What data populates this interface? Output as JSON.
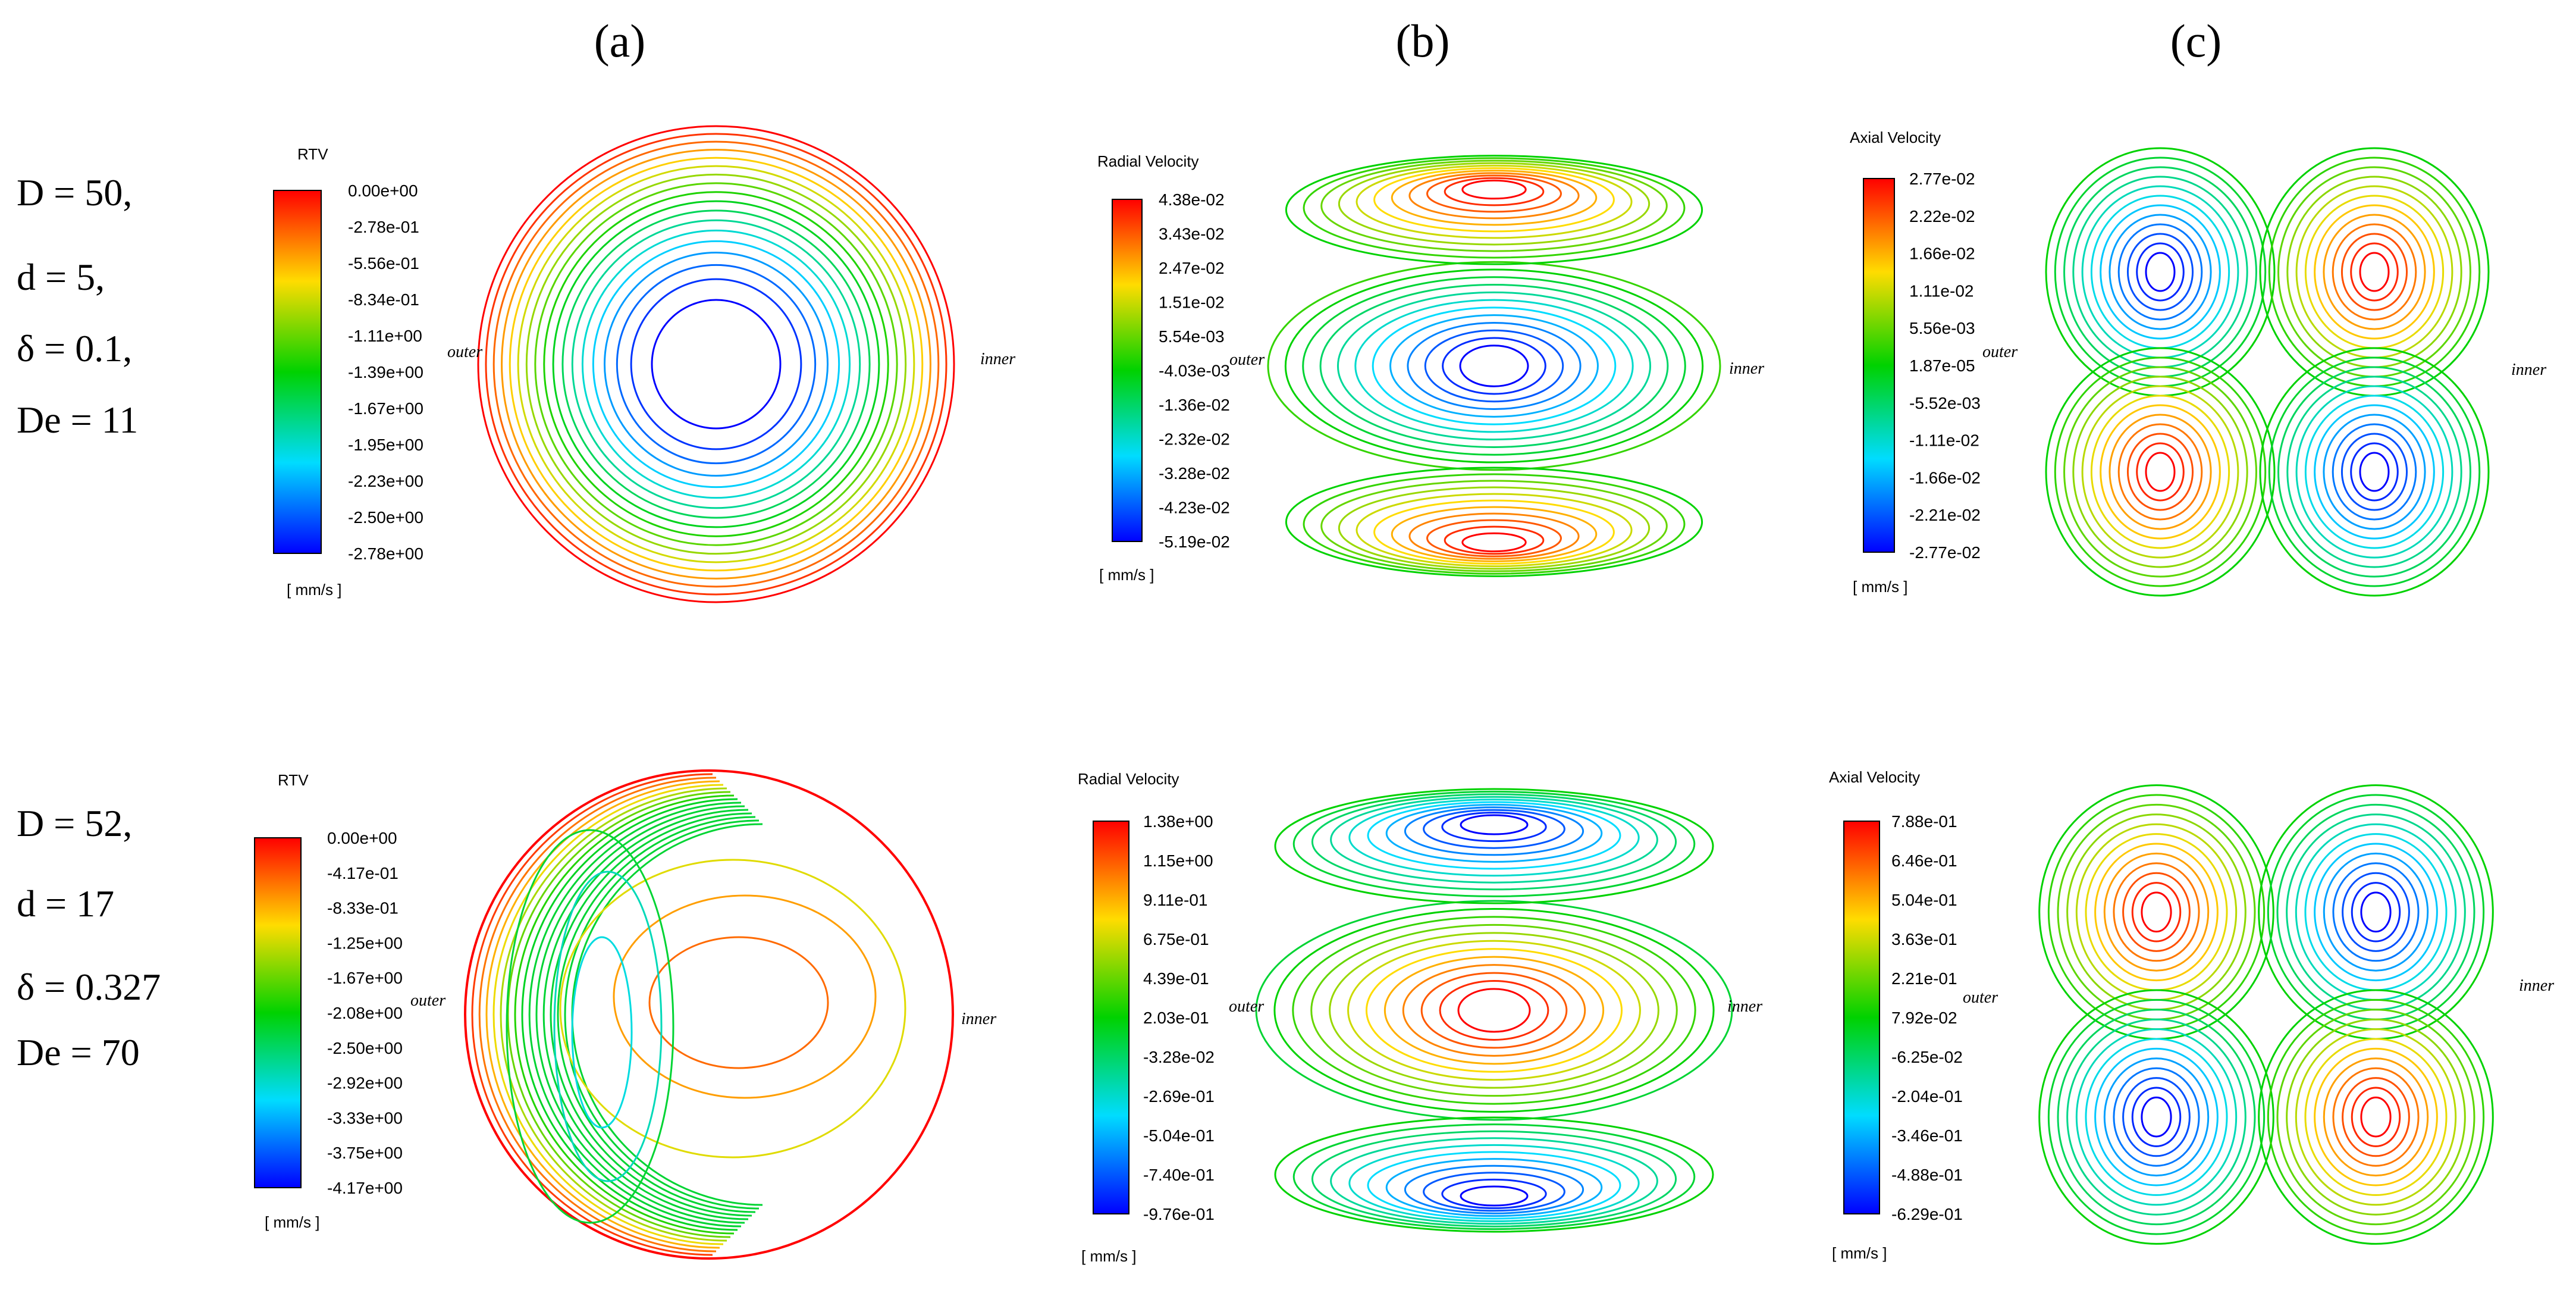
{
  "figure": {
    "column_labels": [
      "(a)",
      "(b)",
      "(c)"
    ],
    "rows": [
      {
        "params": [
          "D = 50,",
          "d = 5,",
          "δ = 0.1,",
          "De = 11"
        ],
        "panels": [
          {
            "kind": "rtv",
            "legend_title": "RTV",
            "unit": "[ mm/s ]",
            "ticks": [
              "0.00e+00",
              "-2.78e-01",
              "-5.56e-01",
              "-8.34e-01",
              "-1.11e+00",
              "-1.39e+00",
              "-1.67e+00",
              "-1.95e+00",
              "-2.23e+00",
              "-2.50e+00",
              "-2.78e+00"
            ],
            "outer_label": "outer",
            "inner_label": "inner"
          },
          {
            "kind": "radial",
            "legend_title": "Radial Velocity",
            "unit": "[ mm/s ]",
            "ticks": [
              "4.38e-02",
              "3.43e-02",
              "2.47e-02",
              "1.51e-02",
              "5.54e-03",
              "-4.03e-03",
              "-1.36e-02",
              "-2.32e-02",
              "-3.28e-02",
              "-4.23e-02",
              "-5.19e-02"
            ],
            "outer_label": "outer",
            "inner_label": "inner",
            "center_color": "blue"
          },
          {
            "kind": "axial",
            "legend_title": "Axial Velocity",
            "unit": "[ mm/s ]",
            "ticks": [
              "2.77e-02",
              "2.22e-02",
              "1.66e-02",
              "1.11e-02",
              "5.56e-03",
              "1.87e-05",
              "-5.52e-03",
              "-1.11e-02",
              "-1.66e-02",
              "-2.21e-02",
              "-2.77e-02"
            ],
            "outer_label": "outer",
            "inner_label": "inner",
            "tl_color": "blue"
          }
        ]
      },
      {
        "params": [
          "D = 52,",
          "d = 17",
          "δ = 0.327",
          "De = 70"
        ],
        "panels": [
          {
            "kind": "rtv2",
            "legend_title": "RTV",
            "unit": "[ mm/s ]",
            "ticks": [
              "0.00e+00",
              "-4.17e-01",
              "-8.33e-01",
              "-1.25e+00",
              "-1.67e+00",
              "-2.08e+00",
              "-2.50e+00",
              "-2.92e+00",
              "-3.33e+00",
              "-3.75e+00",
              "-4.17e+00"
            ],
            "outer_label": "outer",
            "inner_label": "inner"
          },
          {
            "kind": "radial",
            "legend_title": "Radial Velocity",
            "unit": "[ mm/s ]",
            "ticks": [
              "1.38e+00",
              "1.15e+00",
              "9.11e-01",
              "6.75e-01",
              "4.39e-01",
              "2.03e-01",
              "-3.28e-02",
              "-2.69e-01",
              "-5.04e-01",
              "-7.40e-01",
              "-9.76e-01"
            ],
            "outer_label": "outer",
            "inner_label": "inner",
            "center_color": "red"
          },
          {
            "kind": "axial",
            "legend_title": "Axial Velocity",
            "unit": "[ mm/s ]",
            "ticks": [
              "7.88e-01",
              "6.46e-01",
              "5.04e-01",
              "3.63e-01",
              "2.21e-01",
              "7.92e-02",
              "-6.25e-02",
              "-2.04e-01",
              "-3.46e-01",
              "-4.88e-01",
              "-6.29e-01"
            ],
            "outer_label": "outer",
            "inner_label": "inner",
            "tl_color": "red"
          }
        ]
      }
    ]
  }
}
